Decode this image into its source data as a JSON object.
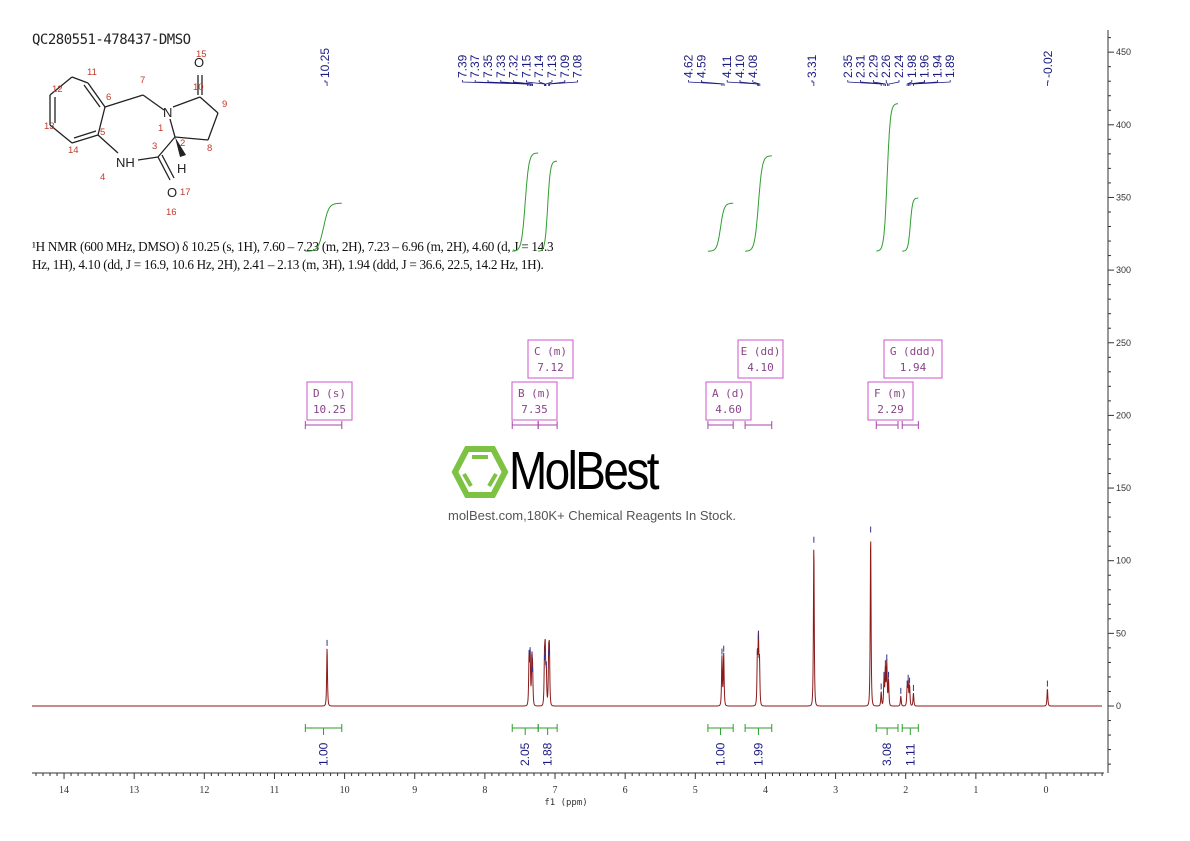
{
  "title": "QC280551-478437-DMSO",
  "description": {
    "line1": "¹H NMR (600 MHz, DMSO) δ 10.25 (s, 1H), 7.60 – 7.23 (m, 2H), 7.23 – 6.96 (m, 2H), 4.60 (d, J = 14.3",
    "line2": "Hz, 1H), 4.10 (dd, J = 16.9, 10.6 Hz, 2H), 2.41 – 2.13 (m, 3H), 1.94 (ddd, J = 36.6, 22.5, 14.2 Hz, 1H)."
  },
  "structure": {
    "atom_numbers": [
      "1",
      "2",
      "3",
      "4",
      "5",
      "6",
      "7",
      "8",
      "9",
      "10",
      "11",
      "12",
      "13",
      "14",
      "15",
      "16",
      "17"
    ],
    "atom_labels": [
      "N",
      "NH",
      "O",
      "O",
      "H"
    ]
  },
  "watermark": {
    "logo": "MolBest",
    "tagline": "molBest.com,180K+ Chemical Reagents In Stock."
  },
  "colors": {
    "spectrum": "#8b1a1a",
    "integral": "#2e9e2e",
    "peak_labels": "#1a1a80",
    "multiplet_boxes": "#cc55cc",
    "logo_green": "#7dc242"
  },
  "chart_data": {
    "type": "line",
    "xlabel": "f1 (ppm)",
    "xlim": [
      14.45,
      -0.8
    ],
    "ylim": [
      -45,
      460
    ],
    "x_ticks": [
      "14",
      "13",
      "12",
      "11",
      "10",
      "9",
      "8",
      "7",
      "6",
      "5",
      "4",
      "3",
      "2",
      "1",
      "0"
    ],
    "y_ticks": [
      "0",
      "50",
      "100",
      "150",
      "200",
      "250",
      "300",
      "350",
      "400",
      "450"
    ],
    "peaks": [
      {
        "ppm": 10.25,
        "h": 40
      },
      {
        "ppm": 7.37,
        "h": 33
      },
      {
        "ppm": 7.355,
        "h": 35
      },
      {
        "ppm": 7.33,
        "h": 30
      },
      {
        "ppm": 7.32,
        "h": 22
      },
      {
        "ppm": 7.15,
        "h": 30
      },
      {
        "ppm": 7.14,
        "h": 35
      },
      {
        "ppm": 7.125,
        "h": 25
      },
      {
        "ppm": 7.09,
        "h": 33
      },
      {
        "ppm": 7.08,
        "h": 35
      },
      {
        "ppm": 4.62,
        "h": 34
      },
      {
        "ppm": 4.595,
        "h": 36
      },
      {
        "ppm": 4.115,
        "h": 34
      },
      {
        "ppm": 4.1,
        "h": 45
      },
      {
        "ppm": 4.085,
        "h": 30
      },
      {
        "ppm": 3.31,
        "h": 111
      },
      {
        "ppm": 2.5,
        "h": 118
      },
      {
        "ppm": 2.35,
        "h": 10
      },
      {
        "ppm": 2.31,
        "h": 18
      },
      {
        "ppm": 2.29,
        "h": 26
      },
      {
        "ppm": 2.27,
        "h": 30
      },
      {
        "ppm": 2.245,
        "h": 18
      },
      {
        "ppm": 2.07,
        "h": 7
      },
      {
        "ppm": 1.98,
        "h": 12
      },
      {
        "ppm": 1.965,
        "h": 16
      },
      {
        "ppm": 1.945,
        "h": 14
      },
      {
        "ppm": 1.89,
        "h": 9
      },
      {
        "ppm": -0.02,
        "h": 12
      }
    ],
    "peak_label_groups": [
      [
        "10.25"
      ],
      [
        "7.39",
        "7.37",
        "7.35",
        "7.33",
        "7.32",
        "7.15",
        "7.14",
        "7.13",
        "7.09",
        "7.08"
      ],
      [
        "4.62",
        "4.59"
      ],
      [
        "4.11",
        "4.10",
        "4.08"
      ],
      [
        "3.31"
      ],
      [
        "2.35",
        "2.31",
        "2.29",
        "2.26",
        "2.24",
        "1.98",
        "1.96",
        "1.94",
        "1.89"
      ],
      [
        "-0.02"
      ]
    ],
    "integrals": [
      {
        "from": 10.56,
        "to": 10.04,
        "value": "1.00"
      },
      {
        "from": 7.61,
        "to": 7.24,
        "value": "2.05"
      },
      {
        "from": 7.24,
        "to": 6.97,
        "value": "1.88"
      },
      {
        "from": 4.82,
        "to": 4.46,
        "value": "1.00"
      },
      {
        "from": 4.29,
        "to": 3.91,
        "value": "1.99"
      },
      {
        "from": 2.42,
        "to": 2.11,
        "value": "3.08"
      },
      {
        "from": 2.05,
        "to": 1.82,
        "value": "1.11"
      }
    ],
    "multiplets": [
      {
        "name": "D (s)",
        "shift": "10.25",
        "row": 1,
        "from": 10.56,
        "to": 10.04
      },
      {
        "name": "C (m)",
        "shift": "7.12",
        "row": 0,
        "from": 7.24,
        "to": 6.97
      },
      {
        "name": "B (m)",
        "shift": "7.35",
        "row": 1,
        "from": 7.61,
        "to": 7.24
      },
      {
        "name": "E (dd)",
        "shift": "4.10",
        "row": 0,
        "from": 4.29,
        "to": 3.91
      },
      {
        "name": "A (d)",
        "shift": "4.60",
        "row": 1,
        "from": 4.82,
        "to": 4.46
      },
      {
        "name": "G (ddd)",
        "shift": "1.94",
        "row": 0,
        "from": 2.05,
        "to": 1.82
      },
      {
        "name": "F (m)",
        "shift": "2.29",
        "row": 1,
        "from": 2.42,
        "to": 2.11
      }
    ]
  }
}
